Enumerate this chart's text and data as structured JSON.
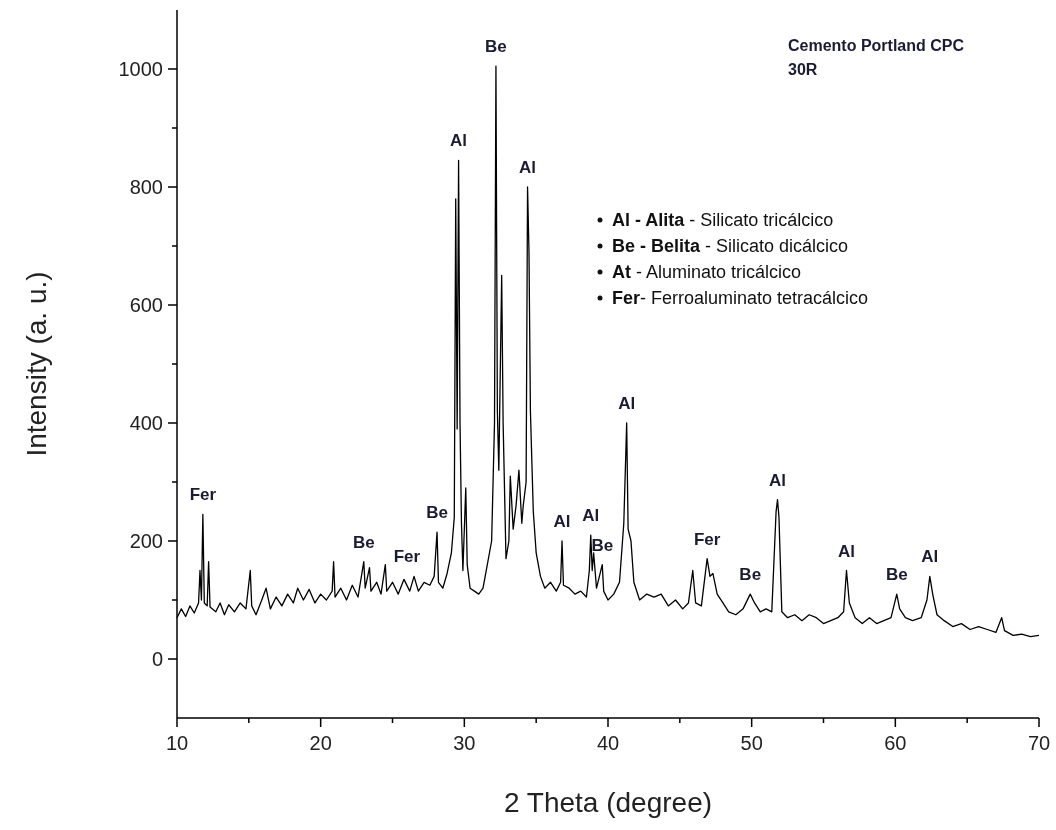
{
  "chart_data": {
    "type": "line",
    "title": "Cemento Portland CPC 30R",
    "xlabel": "2 Theta (degree)",
    "ylabel": "Intensity (a. u.)",
    "xlim": [
      10,
      70
    ],
    "xticks": [
      10,
      {
        "value": 15,
        "label": null
      },
      20,
      {
        "value": 25,
        "label": null
      },
      30,
      {
        "value": 35,
        "label": null
      },
      40,
      {
        "value": 45,
        "label": null
      },
      50,
      {
        "value": 55,
        "label": null
      },
      60,
      {
        "value": 65,
        "label": null
      },
      70
    ],
    "ylim": [
      -100,
      1100
    ],
    "yticks": [
      0,
      {
        "value": 100,
        "label": null
      },
      200,
      {
        "value": 300,
        "label": null
      },
      400,
      {
        "value": 500,
        "label": null
      },
      600,
      {
        "value": 700,
        "label": null
      },
      800,
      {
        "value": 900,
        "label": null
      },
      1000
    ],
    "grid": false,
    "marker": "none",
    "line_style": "solid",
    "series": [
      {
        "color": "#000000",
        "x": [
          10.0,
          10.3,
          10.6,
          10.9,
          11.2,
          11.5,
          11.6,
          11.7,
          11.8,
          11.9,
          12.1,
          12.2,
          12.3,
          12.7,
          13.0,
          13.3,
          13.6,
          14.0,
          14.4,
          14.8,
          15.1,
          15.2,
          15.5,
          15.9,
          16.2,
          16.5,
          16.9,
          17.3,
          17.7,
          18.1,
          18.4,
          18.8,
          19.2,
          19.6,
          20.0,
          20.4,
          20.8,
          20.9,
          21.0,
          21.4,
          21.8,
          22.2,
          22.6,
          23.0,
          23.1,
          23.4,
          23.5,
          23.9,
          24.2,
          24.5,
          24.6,
          25.0,
          25.4,
          25.8,
          26.2,
          26.5,
          26.8,
          27.2,
          27.6,
          27.9,
          28.1,
          28.2,
          28.5,
          28.8,
          29.1,
          29.3,
          29.4,
          29.5,
          29.6,
          29.7,
          29.8,
          29.9,
          30.1,
          30.2,
          30.4,
          30.7,
          31.0,
          31.3,
          31.6,
          31.9,
          32.1,
          32.2,
          32.3,
          32.4,
          32.6,
          32.7,
          32.9,
          33.1,
          33.2,
          33.4,
          33.6,
          33.8,
          34.0,
          34.1,
          34.3,
          34.4,
          34.5,
          34.6,
          34.8,
          35.0,
          35.3,
          35.6,
          36.0,
          36.4,
          36.7,
          36.8,
          36.9,
          37.3,
          37.7,
          38.1,
          38.5,
          38.7,
          38.8,
          38.9,
          39.0,
          39.2,
          39.6,
          39.7,
          40.0,
          40.4,
          40.8,
          41.1,
          41.3,
          41.4,
          41.6,
          41.8,
          42.2,
          42.7,
          43.2,
          43.7,
          44.2,
          44.7,
          45.2,
          45.6,
          45.9,
          46.1,
          46.5,
          46.9,
          47.1,
          47.3,
          47.6,
          48.0,
          48.4,
          48.9,
          49.4,
          49.9,
          50.2,
          50.6,
          51.0,
          51.4,
          51.7,
          51.8,
          51.9,
          52.1,
          52.5,
          53.0,
          53.5,
          54.0,
          54.5,
          55.0,
          55.5,
          56.0,
          56.4,
          56.6,
          56.8,
          57.2,
          57.7,
          58.2,
          58.7,
          59.2,
          59.7,
          60.1,
          60.3,
          60.7,
          61.2,
          61.8,
          62.2,
          62.4,
          62.6,
          62.9,
          63.4,
          64.0,
          64.6,
          65.2,
          65.8,
          66.4,
          67.0,
          67.4,
          67.6,
          68.2,
          68.8,
          69.4,
          70.0
        ],
        "values": [
          70,
          85,
          72,
          90,
          78,
          95,
          150,
          100,
          245,
          95,
          90,
          165,
          88,
          80,
          95,
          75,
          92,
          80,
          95,
          85,
          150,
          90,
          75,
          100,
          120,
          85,
          105,
          90,
          110,
          95,
          120,
          100,
          118,
          95,
          110,
          100,
          115,
          165,
          105,
          120,
          100,
          125,
          105,
          165,
          120,
          155,
          115,
          130,
          110,
          160,
          115,
          130,
          110,
          135,
          115,
          140,
          115,
          130,
          125,
          140,
          215,
          130,
          120,
          145,
          180,
          240,
          780,
          390,
          845,
          400,
          230,
          150,
          290,
          160,
          120,
          115,
          110,
          120,
          160,
          200,
          400,
          1005,
          420,
          320,
          650,
          400,
          170,
          200,
          310,
          220,
          260,
          320,
          230,
          260,
          300,
          800,
          690,
          420,
          250,
          180,
          140,
          120,
          130,
          115,
          130,
          200,
          125,
          120,
          110,
          115,
          105,
          150,
          210,
          150,
          180,
          120,
          160,
          115,
          100,
          110,
          130,
          230,
          400,
          220,
          200,
          130,
          100,
          110,
          105,
          110,
          90,
          100,
          85,
          95,
          150,
          95,
          90,
          170,
          140,
          145,
          110,
          95,
          80,
          75,
          85,
          110,
          95,
          80,
          85,
          80,
          250,
          270,
          240,
          80,
          70,
          75,
          65,
          75,
          70,
          60,
          65,
          70,
          80,
          150,
          95,
          70,
          60,
          70,
          60,
          65,
          70,
          110,
          85,
          70,
          65,
          70,
          100,
          140,
          110,
          75,
          65,
          55,
          60,
          50,
          55,
          50,
          45,
          70,
          48,
          40,
          42,
          38,
          40
        ]
      }
    ],
    "annotations": [
      {
        "text": "Fer",
        "x": 11.8,
        "y": 245
      },
      {
        "text": "Be",
        "x": 23.0,
        "y": 165
      },
      {
        "text": "Fer",
        "x": 26.0,
        "y": 140
      },
      {
        "text": "Be",
        "x": 28.1,
        "y": 215
      },
      {
        "text": "Al",
        "x": 29.6,
        "y": 845
      },
      {
        "text": "Be",
        "x": 32.2,
        "y": 1005
      },
      {
        "text": "Al",
        "x": 34.4,
        "y": 800
      },
      {
        "text": "Al",
        "x": 36.8,
        "y": 200
      },
      {
        "text": "Al",
        "x": 38.8,
        "y": 210
      },
      {
        "text": "Be",
        "x": 39.6,
        "y": 160
      },
      {
        "text": "Al",
        "x": 41.3,
        "y": 400
      },
      {
        "text": "Fer",
        "x": 46.9,
        "y": 170
      },
      {
        "text": "Be",
        "x": 49.9,
        "y": 110
      },
      {
        "text": "Al",
        "x": 51.8,
        "y": 270
      },
      {
        "text": "Al",
        "x": 56.6,
        "y": 150
      },
      {
        "text": "Be",
        "x": 60.1,
        "y": 110
      },
      {
        "text": "Al",
        "x": 62.4,
        "y": 140
      },
      "Al - Alita - Silicato tricálcico",
      "Be - Belita - Silicato dicálcico",
      "At - Aluminato tricálcico",
      "Fer- Ferroaluminato tetracálcico"
    ]
  }
}
